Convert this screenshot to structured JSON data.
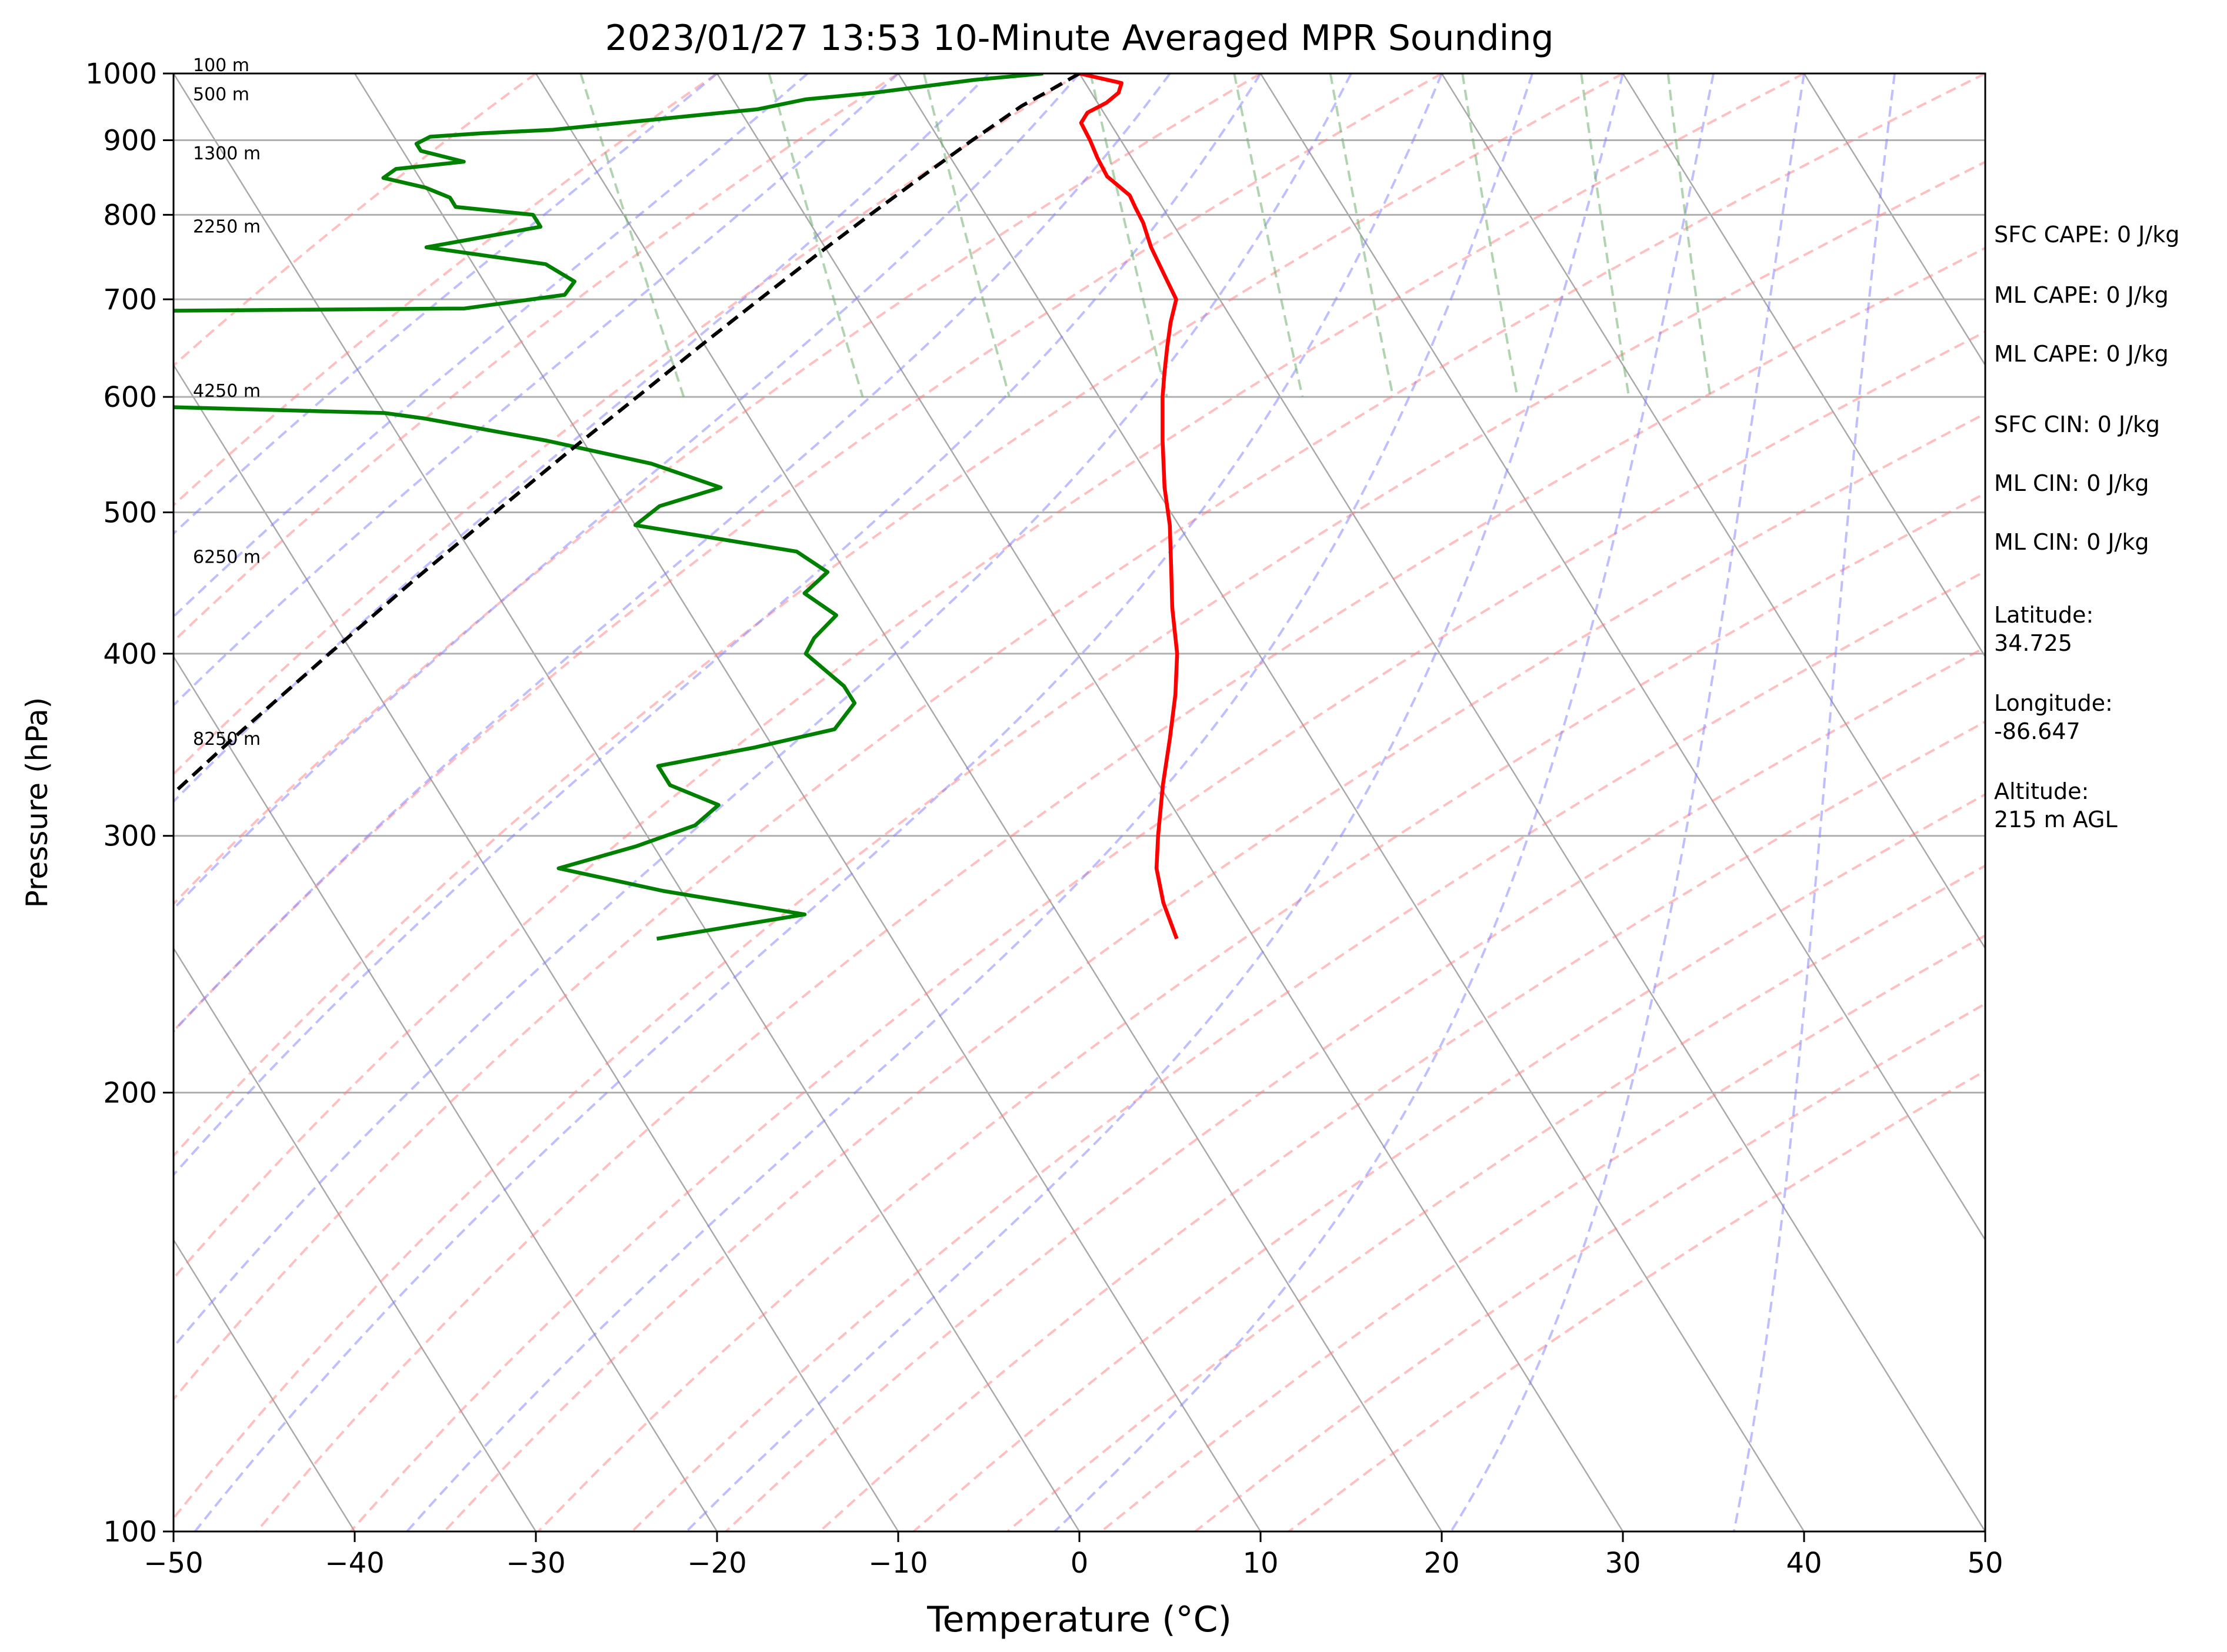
{
  "chart_data": {
    "type": "line",
    "title": "2023/01/27 13:53 10-Minute Averaged MPR Sounding",
    "xlabel": "Temperature (°C)",
    "ylabel": "Pressure (hPa)",
    "xlim": [
      -50,
      50
    ],
    "ylim": [
      1000,
      100
    ],
    "y_scale": "log",
    "x_ticks": [
      "−50",
      "−40",
      "−30",
      "−20",
      "−10",
      "0",
      "10",
      "20",
      "30",
      "40",
      "50"
    ],
    "x_tick_values": [
      -50,
      -40,
      -30,
      -20,
      -10,
      0,
      10,
      20,
      30,
      40,
      50
    ],
    "y_ticks": [
      "100",
      "200",
      "300",
      "400",
      "500",
      "600",
      "700",
      "800",
      "900",
      "1000"
    ],
    "y_tick_values": [
      100,
      200,
      300,
      400,
      500,
      600,
      700,
      800,
      900,
      1000
    ],
    "skew_per_decade_c": 50,
    "grid": true,
    "height_labels": [
      {
        "p": 1000,
        "text": "100 m"
      },
      {
        "p": 955,
        "text": "500 m"
      },
      {
        "p": 870,
        "text": "1300 m"
      },
      {
        "p": 775,
        "text": "2250 m"
      },
      {
        "p": 598,
        "text": "4250 m"
      },
      {
        "p": 460,
        "text": "6250 m"
      },
      {
        "p": 345,
        "text": "8250 m"
      }
    ],
    "series": [
      {
        "color": "#ff0000",
        "values": [
          [
            1000,
            0
          ],
          [
            985,
            2.0
          ],
          [
            970,
            1.5
          ],
          [
            955,
            0.5
          ],
          [
            940,
            -0.9
          ],
          [
            925,
            -1.6
          ],
          [
            900,
            -1.7
          ],
          [
            875,
            -1.9
          ],
          [
            850,
            -2.0
          ],
          [
            825,
            -1.4
          ],
          [
            810,
            -1.5
          ],
          [
            790,
            -1.6
          ],
          [
            760,
            -2.0
          ],
          [
            730,
            -2.2
          ],
          [
            700,
            -2.4
          ],
          [
            675,
            -3.5
          ],
          [
            650,
            -4.5
          ],
          [
            625,
            -5.5
          ],
          [
            600,
            -6.5
          ],
          [
            560,
            -8.0
          ],
          [
            520,
            -9.5
          ],
          [
            490,
            -10.5
          ],
          [
            460,
            -11.8
          ],
          [
            430,
            -13.2
          ],
          [
            400,
            -14.5
          ],
          [
            375,
            -16.0
          ],
          [
            350,
            -17.8
          ],
          [
            325,
            -19.8
          ],
          [
            300,
            -21.8
          ],
          [
            285,
            -23.0
          ],
          [
            270,
            -23.8
          ],
          [
            255,
            -24.3
          ]
        ]
      },
      {
        "color": "#008000",
        "values": [
          [
            1000,
            -2.0
          ],
          [
            995,
            -4.0
          ],
          [
            990,
            -6.0
          ],
          [
            980,
            -9.0
          ],
          [
            970,
            -12.0
          ],
          [
            960,
            -16.0
          ],
          [
            945,
            -19.0
          ],
          [
            935,
            -23.0
          ],
          [
            915,
            -31.0
          ],
          [
            910,
            -35.0
          ],
          [
            905,
            -38.0
          ],
          [
            895,
            -39.0
          ],
          [
            885,
            -39.0
          ],
          [
            870,
            -37.0
          ],
          [
            860,
            -41.0
          ],
          [
            848,
            -42.0
          ],
          [
            835,
            -40.0
          ],
          [
            822,
            -39.0
          ],
          [
            810,
            -39.0
          ],
          [
            800,
            -35.0
          ],
          [
            785,
            -35.0
          ],
          [
            760,
            -42.0
          ],
          [
            740,
            -36.0
          ],
          [
            720,
            -35.0
          ],
          [
            705,
            -36.0
          ],
          [
            690,
            -42.0
          ],
          [
            685,
            -75.0
          ],
          [
            600,
            -70.0
          ],
          [
            592,
            -65.0
          ],
          [
            585,
            -50.0
          ],
          [
            580,
            -48.0
          ],
          [
            560,
            -42.0
          ],
          [
            540,
            -37.0
          ],
          [
            520,
            -34.0
          ],
          [
            505,
            -38.0
          ],
          [
            490,
            -40.0
          ],
          [
            470,
            -32.0
          ],
          [
            455,
            -31.0
          ],
          [
            440,
            -33.0
          ],
          [
            425,
            -32.0
          ],
          [
            410,
            -34.0
          ],
          [
            400,
            -35.0
          ],
          [
            380,
            -34.0
          ],
          [
            370,
            -34.0
          ],
          [
            355,
            -36.0
          ],
          [
            345,
            -41.0
          ],
          [
            335,
            -47.0
          ],
          [
            325,
            -47.0
          ],
          [
            315,
            -45.0
          ],
          [
            305,
            -47.0
          ],
          [
            295,
            -51.0
          ],
          [
            285,
            -56.0
          ],
          [
            275,
            -51.0
          ],
          [
            265,
            -44.0
          ],
          [
            255,
            -53.0
          ]
        ]
      },
      {
        "color": "#000000",
        "values": [
          [
            1000,
            0
          ],
          [
            975,
            -2.1
          ],
          [
            950,
            -4.3
          ],
          [
            900,
            -8.2
          ],
          [
            850,
            -12.2
          ],
          [
            800,
            -16.4
          ],
          [
            750,
            -20.8
          ],
          [
            700,
            -25.4
          ],
          [
            650,
            -30.3
          ],
          [
            600,
            -35.5
          ],
          [
            550,
            -41.2
          ],
          [
            500,
            -47.3
          ],
          [
            450,
            -54.0
          ],
          [
            400,
            -61.3
          ],
          [
            350,
            -69.5
          ],
          [
            300,
            -78.7
          ],
          [
            295,
            -80.0
          ]
        ]
      }
    ],
    "dry_adiabats_theta_c": [
      -30,
      -20,
      -10,
      0,
      10,
      20,
      30,
      40,
      50,
      60,
      70,
      80,
      90,
      100,
      110,
      120,
      130,
      140,
      150,
      160,
      170,
      180
    ],
    "moist_adiabats_start_c": [
      -20,
      -15,
      -10,
      -5,
      0,
      5,
      10,
      15,
      20,
      25,
      30,
      35,
      40,
      45
    ],
    "mixing_ratio_lines_gkg": [
      0.4,
      1,
      2,
      4,
      7,
      10,
      16,
      24,
      32
    ],
    "indices": [
      {
        "label": "SFC CAPE: 0 J/kg"
      },
      {
        "label": "ML CAPE: 0 J/kg"
      },
      {
        "label": "ML CAPE: 0 J/kg"
      },
      {
        "label": "SFC CIN: 0 J/kg"
      },
      {
        "label": "ML CIN: 0 J/kg"
      },
      {
        "label": "ML CIN: 0 J/kg"
      }
    ],
    "site": [
      {
        "label": "Latitude:\n34.725"
      },
      {
        "label": "Longitude:\n-86.647"
      },
      {
        "label": "Altitude:\n215 m AGL"
      }
    ]
  }
}
